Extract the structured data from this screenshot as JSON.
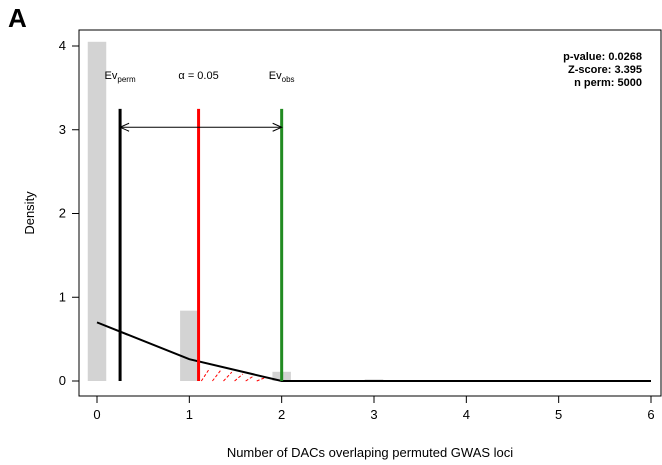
{
  "panel_label": "A",
  "chart_data": {
    "type": "bar",
    "title": "",
    "xlabel": "Number of DACs overlaping permuted GWAS loci",
    "ylabel": "Density",
    "xlim": [
      0,
      6
    ],
    "ylim": [
      0,
      4
    ],
    "x_ticks": [
      "0",
      "1",
      "2",
      "3",
      "4",
      "5",
      "6"
    ],
    "y_ticks": [
      "0",
      "1",
      "2",
      "3",
      "4"
    ],
    "histogram": {
      "bins": [
        0,
        1,
        2,
        3
      ],
      "density": [
        4.05,
        0.84,
        0.11,
        0.02
      ],
      "color": "#d3d3d3"
    },
    "density_curve": {
      "x": [
        0,
        1,
        2,
        3,
        4,
        5,
        6
      ],
      "y": [
        0.7,
        0.26,
        0.0,
        0.0,
        0.0,
        0.0,
        0.0
      ]
    },
    "vertical_lines": [
      {
        "label_main": "Ev",
        "label_sub": "perm",
        "x": 0.25,
        "color": "#000000"
      },
      {
        "label_main": "α = 0.05",
        "label_sub": "",
        "x": 1.1,
        "color": "#ff0000"
      },
      {
        "label_main": "Ev",
        "label_sub": "obs",
        "x": 2.0,
        "color": "#228b22"
      }
    ],
    "arrow": {
      "from_x": 0.25,
      "to_x": 2.0,
      "y": 3.03
    },
    "stats": [
      {
        "label": "p-value:",
        "value": "0.0268"
      },
      {
        "label": "Z-score:",
        "value": "3.395"
      },
      {
        "label": "n perm:",
        "value": "5000"
      }
    ],
    "grid": false
  }
}
